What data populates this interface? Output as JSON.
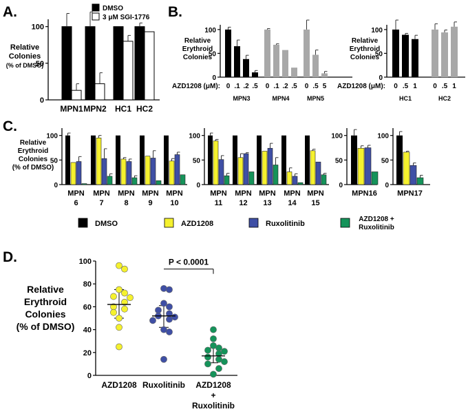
{
  "figure": {
    "panels": [
      "A.",
      "B.",
      "C.",
      "D."
    ]
  },
  "colors": {
    "dmso": "#000000",
    "sgi": "#ffffff",
    "azd_b": "#a8a8a8",
    "azd1208": "#f5f12e",
    "ruxolitinib": "#3f4fa5",
    "combo": "#15935a"
  },
  "chart_data": [
    {
      "id": "A",
      "type": "bar",
      "ylabel": "Relative Colonies (% of DMSO)",
      "ylabel_lines": [
        "Relative",
        "Colonies",
        "(% of DMSO)"
      ],
      "ylim": [
        0,
        110
      ],
      "yticks": [
        0,
        50,
        100
      ],
      "legend": [
        "DMSO",
        "3 μM SGI-1776"
      ],
      "categories": [
        "MPN1",
        "MPN2",
        "HC1",
        "HC2"
      ],
      "series": [
        {
          "name": "DMSO",
          "values": [
            100,
            100,
            100,
            100
          ],
          "errors": [
            18,
            20,
            0,
            5
          ]
        },
        {
          "name": "3 μM SGI-1776",
          "values": [
            13,
            22,
            80,
            93
          ],
          "errors": [
            9,
            15,
            8,
            0
          ]
        }
      ]
    },
    {
      "id": "B1",
      "type": "bar",
      "ylabel_lines": [
        "Relative",
        "Erythroid",
        "Colonies"
      ],
      "ylim": [
        0,
        110
      ],
      "yticks": [
        0,
        50,
        100
      ],
      "dose_label": "AZD1208 (μM):",
      "groups": [
        {
          "name": "MPN3",
          "doses": [
            "0",
            ".1",
            ".2",
            ".5"
          ],
          "values": [
            100,
            65,
            38,
            10
          ],
          "errors": [
            5,
            13,
            8,
            4
          ],
          "color": "dmso"
        },
        {
          "name": "MPN4",
          "doses": [
            "0",
            ".1",
            ".2",
            ".5"
          ],
          "values": [
            100,
            68,
            57,
            20
          ],
          "errors": [
            2,
            2,
            0,
            0
          ],
          "color": "azd_b"
        },
        {
          "name": "MPN5",
          "doses": [
            "0",
            ".5",
            "5"
          ],
          "values": [
            100,
            47,
            8
          ],
          "errors": [
            20,
            10,
            4
          ],
          "color": "azd_b"
        }
      ]
    },
    {
      "id": "B2",
      "type": "bar",
      "ylabel_lines": [
        "Relative",
        "Erythroid",
        "Colonies"
      ],
      "ylim": [
        0,
        110
      ],
      "yticks": [
        0,
        50,
        100
      ],
      "dose_label": "AZD1208 (μM):",
      "groups": [
        {
          "name": "HC1",
          "doses": [
            "0",
            ".5",
            "1"
          ],
          "values": [
            100,
            89,
            80
          ],
          "errors": [
            20,
            3,
            8
          ],
          "color": "dmso"
        },
        {
          "name": "HC2",
          "doses": [
            "0",
            ".5",
            "1"
          ],
          "values": [
            100,
            94,
            106
          ],
          "errors": [
            12,
            5,
            10
          ],
          "color": "azd_b"
        }
      ]
    },
    {
      "id": "C",
      "type": "bar",
      "ylabel_lines": [
        "Relative",
        "Erythroid",
        "Colonies",
        "(% of DMSO)"
      ],
      "ylim": [
        0,
        115
      ],
      "yticks": [
        0,
        50,
        100
      ],
      "series_names": [
        "DMSO",
        "AZD1208",
        "Ruxolitinib",
        "AZD1208 + Ruxolitinib"
      ],
      "blocks": [
        {
          "samples": [
            {
              "top": "MPN",
              "bottom": "6",
              "values": [
                100,
                45,
                47,
                2
              ],
              "errors": [
                5,
                0,
                10,
                0
              ]
            },
            {
              "top": "MPN",
              "bottom": "7",
              "values": [
                100,
                95,
                53,
                17
              ],
              "errors": [
                0,
                5,
                20,
                5
              ]
            },
            {
              "top": "MPN",
              "bottom": "8",
              "values": [
                100,
                52,
                47,
                14
              ],
              "errors": [
                0,
                3,
                5,
                4
              ]
            },
            {
              "top": "MPN",
              "bottom": "9",
              "values": [
                100,
                58,
                54,
                8
              ],
              "errors": [
                0,
                0,
                15,
                0
              ]
            },
            {
              "top": "MPN",
              "bottom": "10",
              "values": [
                100,
                48,
                61,
                20
              ],
              "errors": [
                0,
                5,
                5,
                0
              ]
            }
          ]
        },
        {
          "samples": [
            {
              "top": "MPN",
              "bottom": "11",
              "values": [
                100,
                89,
                51,
                18
              ],
              "errors": [
                5,
                3,
                8,
                5
              ]
            },
            {
              "top": "MPN",
              "bottom": "12",
              "values": [
                100,
                55,
                63,
                26
              ],
              "errors": [
                0,
                8,
                2,
                0
              ]
            },
            {
              "top": "MPN",
              "bottom": "13",
              "values": [
                100,
                68,
                74,
                40
              ],
              "errors": [
                0,
                0,
                10,
                15
              ]
            },
            {
              "top": "MPN",
              "bottom": "14",
              "values": [
                100,
                26,
                17,
                4
              ],
              "errors": [
                0,
                8,
                5,
                0
              ]
            },
            {
              "top": "MPN",
              "bottom": "15",
              "values": [
                100,
                69,
                46,
                20
              ],
              "errors": [
                0,
                3,
                0,
                3
              ]
            }
          ]
        },
        {
          "samples": [
            {
              "top": "MPN16",
              "bottom": "",
              "values": [
                100,
                74,
                75,
                26
              ],
              "errors": [
                12,
                5,
                5,
                0
              ]
            }
          ]
        },
        {
          "samples": [
            {
              "top": "MPN17",
              "bottom": "",
              "values": [
                100,
                66,
                39,
                14
              ],
              "errors": [
                8,
                2,
                5,
                5
              ]
            }
          ]
        }
      ],
      "legend": [
        {
          "label": "DMSO",
          "color": "dmso"
        },
        {
          "label": "AZD1208",
          "color": "azd1208"
        },
        {
          "label": "Ruxolitinib",
          "color": "ruxolitinib"
        },
        {
          "label_lines": [
            "AZD1208 +",
            "Ruxolitinib"
          ],
          "color": "combo"
        }
      ]
    },
    {
      "id": "D",
      "type": "scatter",
      "ylabel_lines": [
        "Relative",
        "Erythroid",
        "Colonies",
        "(% of DMSO)"
      ],
      "ylim": [
        0,
        100
      ],
      "yticks": [
        0,
        20,
        40,
        60,
        80,
        100
      ],
      "annotation": "P < 0.0001",
      "groups": [
        {
          "name": "AZD1208",
          "label_lines": [
            "AZD1208"
          ],
          "color": "azd1208",
          "mean": 62,
          "ci": [
            50,
            75
          ],
          "points": [
            96,
            93,
            75,
            72,
            69,
            68,
            64,
            60,
            58,
            55,
            50,
            42,
            25
          ]
        },
        {
          "name": "Ruxolitinib",
          "label_lines": [
            "Ruxolitinib"
          ],
          "color": "ruxolitinib",
          "mean": 52,
          "ci": [
            42,
            61
          ],
          "points": [
            76,
            75,
            63,
            60,
            57,
            54,
            52,
            51,
            49,
            48,
            40,
            38,
            14
          ]
        },
        {
          "name": "AZD1208 + Ruxolitinib",
          "label_lines": [
            "AZD1208",
            "+",
            "Ruxolitinib"
          ],
          "color": "combo",
          "mean": 17,
          "ci": [
            11,
            24
          ],
          "points": [
            40,
            32,
            26,
            24,
            22,
            21,
            19,
            16,
            14,
            12,
            10,
            6,
            1
          ]
        }
      ]
    }
  ]
}
